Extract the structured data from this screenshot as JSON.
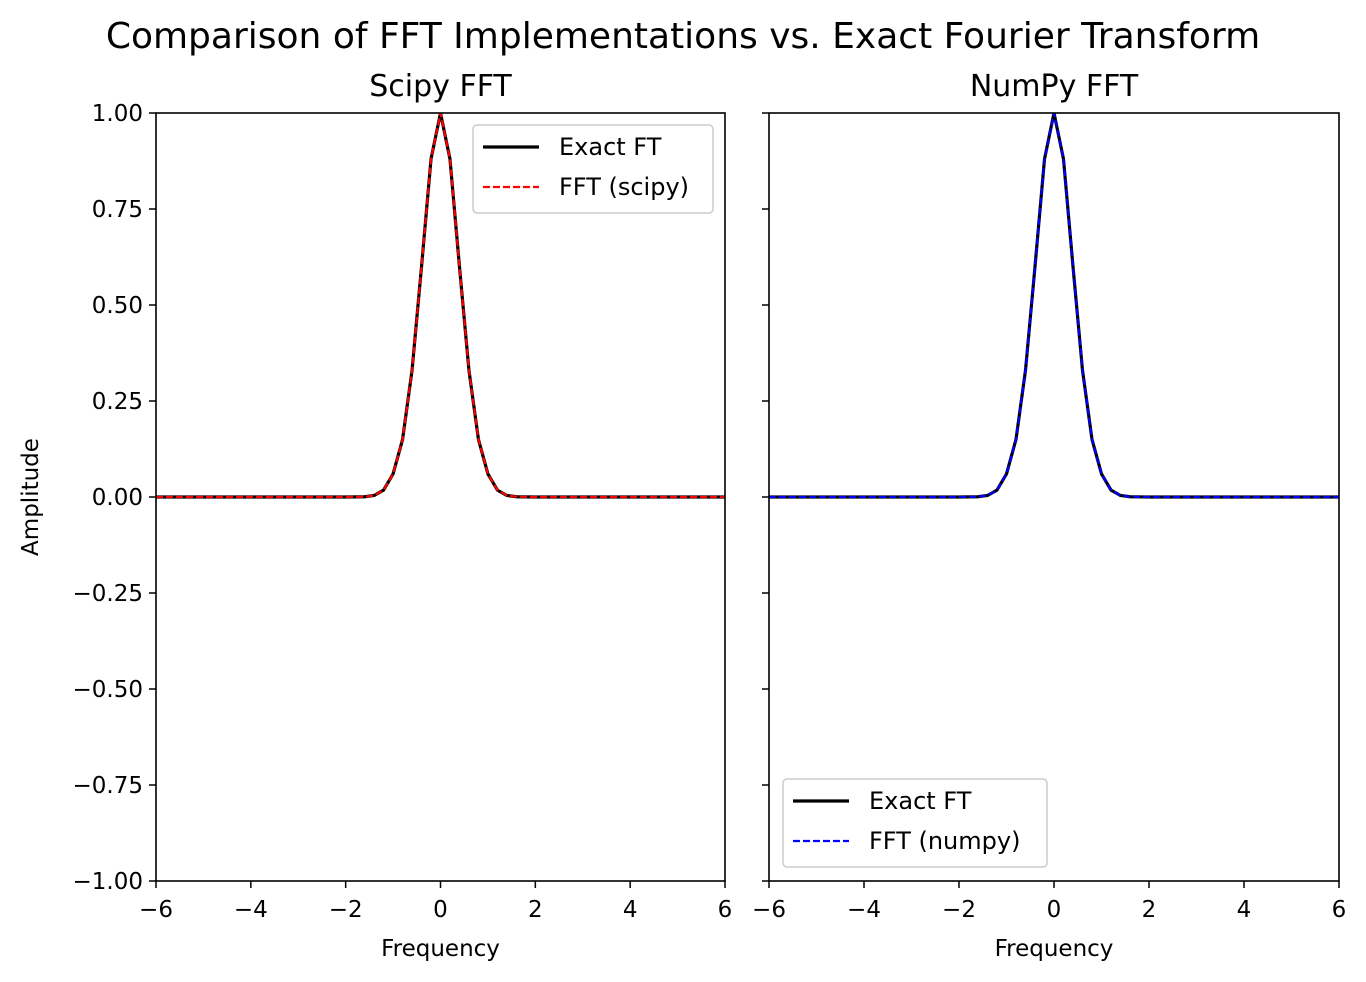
{
  "figure": {
    "suptitle": "Comparison of FFT Implementations vs. Exact Fourier Transform"
  },
  "chart_data": [
    {
      "type": "line",
      "title": "Scipy FFT",
      "xlabel": "Frequency",
      "ylabel": "Amplitude",
      "xlim": [
        -6,
        6
      ],
      "ylim": [
        -1,
        1
      ],
      "xticks": [
        -6,
        -4,
        -2,
        0,
        2,
        4,
        6
      ],
      "xtick_labels": [
        "−6",
        "−4",
        "−2",
        "0",
        "2",
        "4",
        "6"
      ],
      "yticks": [
        -1,
        -0.75,
        -0.5,
        -0.25,
        0,
        0.25,
        0.5,
        0.75,
        1
      ],
      "ytick_labels": [
        "−1.00",
        "−0.75",
        "−0.50",
        "−0.25",
        "0.00",
        "0.25",
        "0.50",
        "0.75",
        "1.00"
      ],
      "show_ytick_labels": true,
      "grid": false,
      "legend_position": "top-right",
      "series": [
        {
          "name": "Exact FT",
          "color": "#000000",
          "style": "solid",
          "x": [
            -6,
            -5,
            -4,
            -3,
            -2,
            -1.6,
            -1.4,
            -1.2,
            -1.0,
            -0.8,
            -0.6,
            -0.4,
            -0.2,
            0,
            0.2,
            0.4,
            0.6,
            0.8,
            1.0,
            1.2,
            1.4,
            1.6,
            2,
            3,
            4,
            5,
            6
          ],
          "y": [
            0,
            0,
            0,
            0,
            0,
            0.0006,
            0.004,
            0.018,
            0.06,
            0.15,
            0.33,
            0.6,
            0.88,
            1.0,
            0.88,
            0.6,
            0.33,
            0.15,
            0.06,
            0.018,
            0.004,
            0.0006,
            0,
            0,
            0,
            0,
            0
          ]
        },
        {
          "name": "FFT (scipy)",
          "color": "#ff0000",
          "style": "dashed",
          "x": [
            -6,
            -5,
            -4,
            -3,
            -2,
            -1.6,
            -1.4,
            -1.2,
            -1.0,
            -0.8,
            -0.6,
            -0.4,
            -0.2,
            0,
            0.2,
            0.4,
            0.6,
            0.8,
            1.0,
            1.2,
            1.4,
            1.6,
            2,
            3,
            4,
            5,
            6
          ],
          "y": [
            0,
            0,
            0,
            0,
            0,
            0.0006,
            0.004,
            0.018,
            0.06,
            0.15,
            0.33,
            0.6,
            0.88,
            1.0,
            0.88,
            0.6,
            0.33,
            0.15,
            0.06,
            0.018,
            0.004,
            0.0006,
            0,
            0,
            0,
            0,
            0
          ]
        }
      ]
    },
    {
      "type": "line",
      "title": "NumPy FFT",
      "xlabel": "Frequency",
      "ylabel": "",
      "xlim": [
        -6,
        6
      ],
      "ylim": [
        -1,
        1
      ],
      "xticks": [
        -6,
        -4,
        -2,
        0,
        2,
        4,
        6
      ],
      "xtick_labels": [
        "−6",
        "−4",
        "−2",
        "0",
        "2",
        "4",
        "6"
      ],
      "yticks": [
        -1,
        -0.75,
        -0.5,
        -0.25,
        0,
        0.25,
        0.5,
        0.75,
        1
      ],
      "ytick_labels": [],
      "show_ytick_labels": false,
      "grid": false,
      "legend_position": "bottom-left",
      "series": [
        {
          "name": "Exact FT",
          "color": "#000000",
          "style": "solid",
          "x": [
            -6,
            -5,
            -4,
            -3,
            -2,
            -1.6,
            -1.4,
            -1.2,
            -1.0,
            -0.8,
            -0.6,
            -0.4,
            -0.2,
            0,
            0.2,
            0.4,
            0.6,
            0.8,
            1.0,
            1.2,
            1.4,
            1.6,
            2,
            3,
            4,
            5,
            6
          ],
          "y": [
            0,
            0,
            0,
            0,
            0,
            0.0006,
            0.004,
            0.018,
            0.06,
            0.15,
            0.33,
            0.6,
            0.88,
            1.0,
            0.88,
            0.6,
            0.33,
            0.15,
            0.06,
            0.018,
            0.004,
            0.0006,
            0,
            0,
            0,
            0,
            0
          ]
        },
        {
          "name": "FFT (numpy)",
          "color": "#0000ff",
          "style": "dashed",
          "x": [
            -6,
            -5,
            -4,
            -3,
            -2,
            -1.6,
            -1.4,
            -1.2,
            -1.0,
            -0.8,
            -0.6,
            -0.4,
            -0.2,
            0,
            0.2,
            0.4,
            0.6,
            0.8,
            1.0,
            1.2,
            1.4,
            1.6,
            2,
            3,
            4,
            5,
            6
          ],
          "y": [
            0,
            0,
            0,
            0,
            0,
            0.0006,
            0.004,
            0.018,
            0.06,
            0.15,
            0.33,
            0.6,
            0.88,
            1.0,
            0.88,
            0.6,
            0.33,
            0.15,
            0.06,
            0.018,
            0.004,
            0.0006,
            0,
            0,
            0,
            0,
            0
          ]
        }
      ]
    }
  ]
}
